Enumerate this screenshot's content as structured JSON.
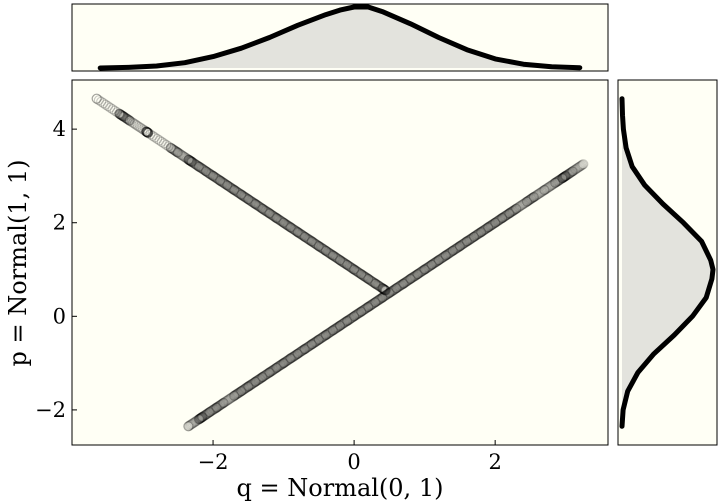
{
  "chart_data": [
    {
      "panel": "joint",
      "type": "scatter",
      "title": "",
      "xlabel": "q = Normal(0, 1)",
      "ylabel": "p = Normal(1, 1)",
      "xlim": [
        -4.0,
        3.6
      ],
      "ylim": [
        -2.75,
        5.05
      ],
      "xticks": [
        -2,
        0,
        2
      ],
      "xtick_labels": [
        "−2",
        "0",
        "2"
      ],
      "yticks": [
        -2,
        0,
        2,
        4
      ],
      "ytick_labels": [
        "−2",
        "0",
        "2",
        "4"
      ],
      "grid": false,
      "background": "#fffff5",
      "marker": "hollow-circle",
      "marker_color": "#000000",
      "marker_alpha": 0.2,
      "series": [
        {
          "x": [
            -3.65,
            -3.33,
            -3.27,
            -3.18,
            -2.95,
            -2.92,
            -2.6,
            -2.5,
            -2.35,
            -2.3,
            -2.2,
            -2.1,
            -2.0,
            -1.9,
            -1.8,
            -1.7,
            -1.6,
            -1.5,
            -1.4,
            -1.3,
            -1.2,
            -1.1,
            -1.0,
            -0.9,
            -0.8,
            -0.7,
            -0.6,
            -0.5,
            -0.4,
            -0.3,
            -0.2,
            -0.1,
            0.0,
            0.1,
            0.2,
            0.3,
            0.4,
            0.45
          ],
          "y": [
            4.65,
            4.33,
            4.27,
            4.18,
            3.95,
            3.92,
            3.6,
            3.5,
            3.35,
            3.3,
            3.2,
            3.1,
            3.0,
            2.9,
            2.8,
            2.7,
            2.6,
            2.5,
            2.4,
            2.3,
            2.2,
            2.1,
            2.0,
            1.9,
            1.8,
            1.7,
            1.6,
            1.5,
            1.4,
            1.3,
            1.2,
            1.1,
            1.0,
            0.9,
            0.8,
            0.7,
            0.6,
            0.55
          ]
        },
        {
          "x": [
            -2.35,
            -2.2,
            -2.15,
            -2.05,
            -1.95,
            -1.85,
            -1.7,
            -1.6,
            -1.5,
            -1.4,
            -1.3,
            -1.2,
            -1.1,
            -1.0,
            -0.9,
            -0.8,
            -0.7,
            -0.6,
            -0.5,
            -0.4,
            -0.3,
            -0.2,
            -0.1,
            0.0,
            0.1,
            0.2,
            0.3,
            0.4,
            0.5,
            0.6,
            0.7,
            0.8,
            0.9,
            1.0,
            1.1,
            1.2,
            1.3,
            1.4,
            1.5,
            1.6,
            1.7,
            1.8,
            1.9,
            2.0,
            2.1,
            2.2,
            2.3,
            2.45,
            2.55,
            2.7,
            2.85,
            2.95,
            3.0,
            3.1,
            3.25
          ],
          "y": [
            -2.35,
            -2.2,
            -2.15,
            -2.05,
            -1.95,
            -1.85,
            -1.7,
            -1.6,
            -1.5,
            -1.4,
            -1.3,
            -1.2,
            -1.1,
            -1.0,
            -0.9,
            -0.8,
            -0.7,
            -0.6,
            -0.5,
            -0.4,
            -0.3,
            -0.2,
            -0.1,
            0.0,
            0.1,
            0.2,
            0.3,
            0.4,
            0.5,
            0.6,
            0.7,
            0.8,
            0.9,
            1.0,
            1.1,
            1.2,
            1.3,
            1.4,
            1.5,
            1.6,
            1.7,
            1.8,
            1.9,
            2.0,
            2.1,
            2.2,
            2.3,
            2.45,
            2.55,
            2.7,
            2.85,
            2.95,
            3.0,
            3.1,
            3.25
          ]
        }
      ]
    },
    {
      "panel": "top-marginal",
      "type": "area",
      "title": "",
      "fill_color": "#e3e3dd",
      "line_color": "#000000",
      "background": "#fffff5",
      "x": [
        -3.6,
        -3.2,
        -2.8,
        -2.4,
        -2.0,
        -1.6,
        -1.2,
        -0.8,
        -0.4,
        -0.2,
        0.0,
        0.2,
        0.4,
        0.6,
        0.8,
        1.2,
        1.6,
        2.0,
        2.4,
        2.8,
        3.2
      ],
      "y": [
        0.0,
        0.004,
        0.013,
        0.035,
        0.075,
        0.13,
        0.2,
        0.28,
        0.35,
        0.38,
        0.4,
        0.4,
        0.37,
        0.33,
        0.29,
        0.2,
        0.12,
        0.06,
        0.025,
        0.008,
        0.002
      ]
    },
    {
      "panel": "right-marginal",
      "type": "area",
      "title": "",
      "orientation": "horizontal",
      "fill_color": "#e3e3dd",
      "line_color": "#000000",
      "background": "#fffff5",
      "y": [
        -2.35,
        -2.0,
        -1.6,
        -1.2,
        -0.8,
        -0.4,
        0.0,
        0.4,
        0.8,
        1.0,
        1.2,
        1.6,
        2.0,
        2.4,
        2.8,
        3.2,
        3.6,
        4.0,
        4.3,
        4.65
      ],
      "x": [
        0.0,
        0.005,
        0.025,
        0.07,
        0.14,
        0.23,
        0.31,
        0.37,
        0.395,
        0.4,
        0.39,
        0.35,
        0.27,
        0.18,
        0.1,
        0.045,
        0.018,
        0.006,
        0.002,
        0.0
      ]
    }
  ]
}
